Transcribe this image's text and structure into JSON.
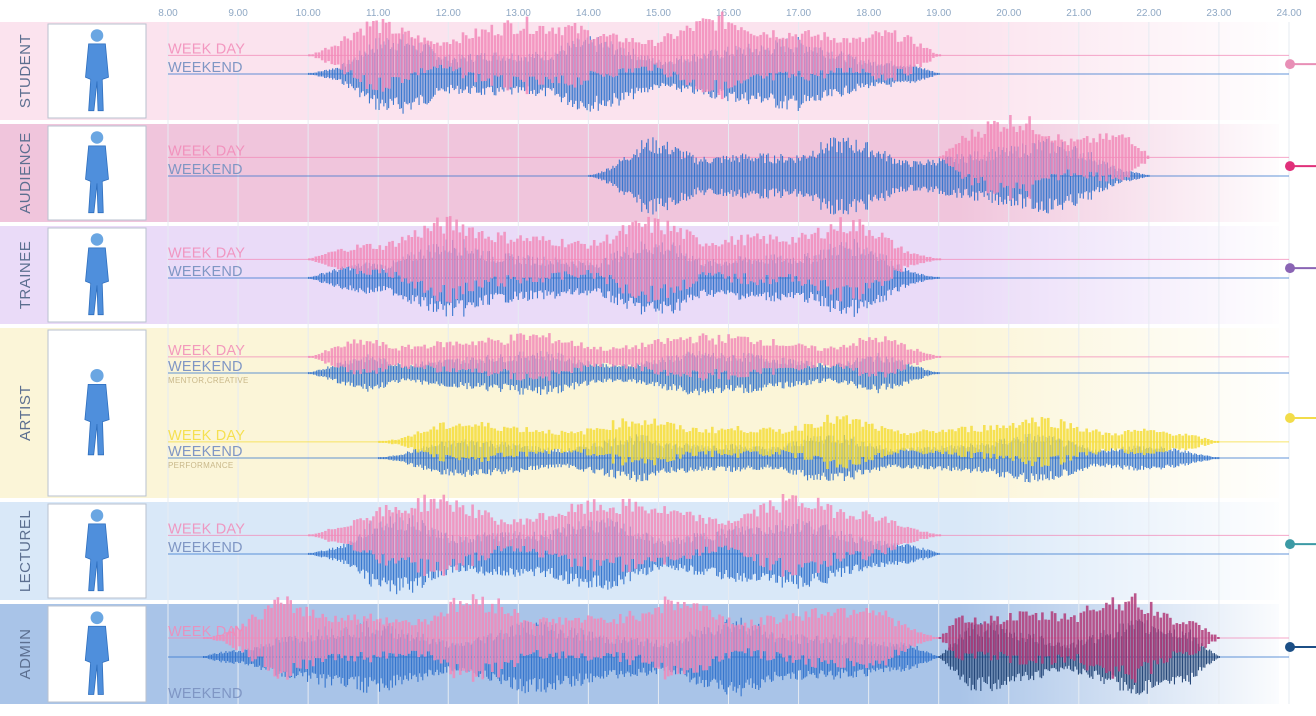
{
  "timeline": {
    "ticks": [
      "8.00",
      "9.00",
      "10.00",
      "11.00",
      "12.00",
      "13.00",
      "14.00",
      "15.00",
      "16.00",
      "17.00",
      "18.00",
      "19.00",
      "20.00",
      "21.00",
      "22.00",
      "23.00",
      "24.00"
    ],
    "start_hour": 8,
    "end_hour": 24
  },
  "rows": [
    {
      "id": "student",
      "label": "STUDENT",
      "icon": "student-figure-icon",
      "bg_color": "#fbe3ee",
      "dot_color": "#e88fb6",
      "lanes": [
        {
          "weekday_label": "WEEK DAY",
          "weekend_label": "WEEKEND",
          "sublabel": "",
          "weekday_range": [
            10.0,
            19.0
          ],
          "weekend_range": [
            10.0,
            19.0
          ],
          "weekday_color": "#f28ab8",
          "weekend_color": "#2f72cc"
        }
      ]
    },
    {
      "id": "audience",
      "label": "AUDIENCE",
      "icon": "audience-figure-icon",
      "bg_color": "#f0c5dc",
      "dot_color": "#e0307a",
      "lanes": [
        {
          "weekday_label": "WEEK DAY",
          "weekend_label": "WEEKEND",
          "sublabel": "",
          "weekday_range": [
            19.0,
            22.0
          ],
          "weekend_range": [
            14.0,
            22.0
          ],
          "weekday_color": "#f28ab8",
          "weekend_color": "#2f72cc"
        }
      ]
    },
    {
      "id": "trainee",
      "label": "TRAINEE",
      "icon": "trainee-figure-icon",
      "bg_color": "#eadbf8",
      "dot_color": "#8a64b4",
      "lanes": [
        {
          "weekday_label": "WEEK DAY",
          "weekend_label": "WEEKEND",
          "sublabel": "",
          "weekday_range": [
            10.0,
            19.0
          ],
          "weekend_range": [
            10.0,
            19.0
          ],
          "weekday_color": "#f28ab8",
          "weekend_color": "#2f72cc"
        }
      ]
    },
    {
      "id": "artist",
      "label": "ARTIST",
      "icon": "artist-figure-icon",
      "bg_color": "#fbf5d8",
      "dot_color": "#f2dc4a",
      "lanes": [
        {
          "weekday_label": "WEEK DAY",
          "weekend_label": "WEEKEND",
          "sublabel": "MENTOR,CREATIVE",
          "weekday_range": [
            10.0,
            19.0
          ],
          "weekend_range": [
            10.0,
            19.0
          ],
          "weekday_color": "#f28ab8",
          "weekend_color": "#2f72cc"
        },
        {
          "weekday_label": "WEEK DAY",
          "weekend_label": "WEEKEND",
          "sublabel": "PERFORMANCE",
          "weekday_range": [
            11.0,
            23.0
          ],
          "weekend_range": [
            11.0,
            23.0
          ],
          "weekday_color": "#f5dd3a",
          "weekend_color": "#2f72cc"
        }
      ]
    },
    {
      "id": "lecturer",
      "label": "LECTUREL",
      "icon": "lecturer-figure-icon",
      "bg_color": "#d9e8f8",
      "dot_color": "#3c9aa5",
      "lanes": [
        {
          "weekday_label": "WEEK DAY",
          "weekend_label": "WEEKEND",
          "sublabel": "",
          "weekday_range": [
            10.0,
            19.0
          ],
          "weekend_range": [
            10.0,
            19.0
          ],
          "weekday_color": "#f28ab8",
          "weekend_color": "#2f72cc"
        }
      ]
    },
    {
      "id": "admin",
      "label": "ADMIN",
      "icon": "admin-figure-icon",
      "bg_color": "#a9c4e8",
      "dot_color": "#1c4f86",
      "lanes": [
        {
          "weekday_label": "WEEK DAY",
          "weekend_label": "WEEKEND",
          "sublabel": "",
          "weekday_range": [
            8.5,
            23.0
          ],
          "weekend_range": [
            8.5,
            23.0
          ],
          "weekday_color": "#f28ab8",
          "weekend_color": "#2f72cc",
          "overtime_from": 19.0,
          "overtime_weekday_color": "#b23a78",
          "overtime_weekend_color": "#1c3f72"
        }
      ]
    }
  ]
}
